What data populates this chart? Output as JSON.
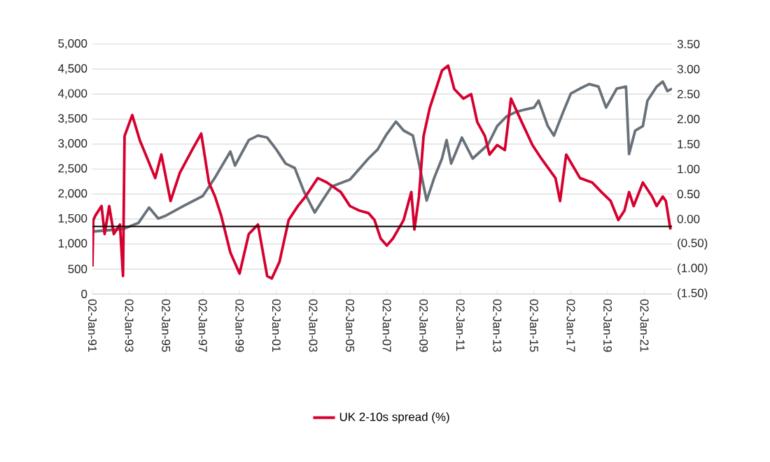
{
  "chart_data": {
    "type": "line",
    "xlim": [
      "1991-01-02",
      "2022-07"
    ],
    "xticks": [
      {
        "value": "1991-01-02",
        "label": "02-Jan-91"
      },
      {
        "value": "1993-01-02",
        "label": "02-Jan-93"
      },
      {
        "value": "1995-01-02",
        "label": "02-Jan-95"
      },
      {
        "value": "1997-01-02",
        "label": "02-Jan-97"
      },
      {
        "value": "1999-01-02",
        "label": "02-Jan-99"
      },
      {
        "value": "2001-01-02",
        "label": "02-Jan-01"
      },
      {
        "value": "2003-01-02",
        "label": "02-Jan-03"
      },
      {
        "value": "2005-01-02",
        "label": "02-Jan-05"
      },
      {
        "value": "2007-01-02",
        "label": "02-Jan-07"
      },
      {
        "value": "2009-01-02",
        "label": "02-Jan-09"
      },
      {
        "value": "2011-01-02",
        "label": "02-Jan-11"
      },
      {
        "value": "2013-01-02",
        "label": "02-Jan-13"
      },
      {
        "value": "2015-01-02",
        "label": "02-Jan-15"
      },
      {
        "value": "2017-01-02",
        "label": "02-Jan-17"
      },
      {
        "value": "2019-01-02",
        "label": "02-Jan-19"
      },
      {
        "value": "2021-01-02",
        "label": "02-Jan-21"
      }
    ],
    "ylim": [
      0,
      5000
    ],
    "yticks": [
      {
        "value": 0,
        "label": "0"
      },
      {
        "value": 500,
        "label": "500"
      },
      {
        "value": 1000,
        "label": "1,000"
      },
      {
        "value": 1500,
        "label": "1,500"
      },
      {
        "value": 2000,
        "label": "2,000"
      },
      {
        "value": 2500,
        "label": "2,500"
      },
      {
        "value": 3000,
        "label": "3,000"
      },
      {
        "value": 3500,
        "label": "3,500"
      },
      {
        "value": 4000,
        "label": "4,000"
      },
      {
        "value": 4500,
        "label": "4,500"
      },
      {
        "value": 5000,
        "label": "5,000"
      }
    ],
    "y2lim": [
      -1.5,
      3.5
    ],
    "y2ticks": [
      {
        "value": -1.5,
        "label": "(1.50)"
      },
      {
        "value": -1.0,
        "label": "(1.00)"
      },
      {
        "value": -0.5,
        "label": "(0.50)"
      },
      {
        "value": 0,
        "label": "0.00"
      },
      {
        "value": 0.5,
        "label": "0.50"
      },
      {
        "value": 1.0,
        "label": "1.00"
      },
      {
        "value": 1.5,
        "label": "1.50"
      },
      {
        "value": 2.0,
        "label": "2.00"
      },
      {
        "value": 2.5,
        "label": "2.50"
      },
      {
        "value": 3.0,
        "label": "3.00"
      },
      {
        "value": 3.5,
        "label": "3.50"
      }
    ],
    "grid": "y",
    "legend": "bottom",
    "ref_lines": [
      {
        "axis": "y2",
        "value": -0.15,
        "color": "#000000"
      }
    ],
    "series": [
      {
        "color": "#68717a",
        "x": [
          "1991-01-02",
          "1992-09",
          "1993-07",
          "1994-02",
          "1994-08",
          "1995-01",
          "1996-01",
          "1997-01",
          "1997-09",
          "1998-07",
          "1998-10",
          "1999-07",
          "2000-01",
          "2000-07",
          "2001-01",
          "2001-07",
          "2002-01",
          "2002-07",
          "2003-02",
          "2003-07",
          "2004-01",
          "2005-01",
          "2006-01",
          "2006-07",
          "2007-01",
          "2007-07",
          "2007-12",
          "2008-06",
          "2008-10",
          "2009-03",
          "2009-08",
          "2010-01",
          "2010-04",
          "2010-07",
          "2011-02",
          "2011-09",
          "2012-07",
          "2013-01",
          "2013-07",
          "2014-01",
          "2014-07",
          "2015-01",
          "2015-04",
          "2015-10",
          "2016-02",
          "2016-08",
          "2017-01",
          "2017-07",
          "2018-01",
          "2018-07",
          "2018-12",
          "2019-07",
          "2020-01",
          "2020-03",
          "2020-07",
          "2020-12",
          "2021-03",
          "2021-09",
          "2022-01",
          "2022-04",
          "2022-07"
        ],
        "values": [
          1250,
          1300,
          1420,
          1730,
          1510,
          1570,
          1770,
          1960,
          2330,
          2850,
          2570,
          3080,
          3170,
          3130,
          2890,
          2610,
          2520,
          2050,
          1630,
          1870,
          2150,
          2290,
          2710,
          2890,
          3200,
          3450,
          3270,
          3170,
          2610,
          1870,
          2330,
          2710,
          3080,
          2610,
          3130,
          2710,
          2990,
          3360,
          3550,
          3640,
          3690,
          3730,
          3870,
          3360,
          3170,
          3640,
          4010,
          4110,
          4200,
          4150,
          3730,
          4110,
          4150,
          2800,
          3270,
          3360,
          3870,
          4150,
          4250,
          4060,
          4110
        ]
      },
      {
        "name": "UK 2-10s spread (%)",
        "color": "#d6002f",
        "axis": "y2",
        "x": [
          "1991-01-02",
          "1991-01-20",
          "1991-03",
          "1991-07",
          "1991-09",
          "1991-12",
          "1992-03",
          "1992-07",
          "1992-09",
          "1992-10",
          "1993-03",
          "1993-08",
          "1994-01",
          "1994-06",
          "1994-10",
          "1995-04",
          "1995-10",
          "1996-06",
          "1996-12",
          "1997-05",
          "1997-09",
          "1998-01",
          "1998-07",
          "1999-01",
          "1999-07",
          "2000-01",
          "2000-07",
          "2000-10",
          "2001-03",
          "2001-09",
          "2002-03",
          "2002-08",
          "2003-04",
          "2003-10",
          "2004-07",
          "2005-01",
          "2005-07",
          "2006-01",
          "2006-05",
          "2006-09",
          "2007-01",
          "2007-05",
          "2007-12",
          "2008-05",
          "2008-07",
          "2008-10",
          "2009-01",
          "2009-05",
          "2009-10",
          "2010-01",
          "2010-05",
          "2010-09",
          "2011-03",
          "2011-08",
          "2011-12",
          "2012-05",
          "2012-08",
          "2013-01",
          "2013-06",
          "2013-10",
          "2014-05",
          "2014-12",
          "2015-06",
          "2016-03",
          "2016-06",
          "2016-10",
          "2017-07",
          "2018-03",
          "2018-09",
          "2019-03",
          "2019-08",
          "2019-12",
          "2020-03",
          "2020-06",
          "2020-12",
          "2021-06",
          "2021-09",
          "2022-01",
          "2022-03",
          "2022-06"
        ],
        "values": [
          -0.95,
          -0.02,
          0.07,
          0.26,
          -0.3,
          0.26,
          -0.3,
          -0.11,
          -1.14,
          1.66,
          2.08,
          1.57,
          1.2,
          0.82,
          1.29,
          0.36,
          0.92,
          1.38,
          1.71,
          0.73,
          0.45,
          0.07,
          -0.67,
          -1.09,
          -0.3,
          -0.11,
          -1.14,
          -1.19,
          -0.86,
          -0.02,
          0.26,
          0.45,
          0.82,
          0.73,
          0.54,
          0.26,
          0.17,
          0.12,
          -0.02,
          -0.39,
          -0.53,
          -0.39,
          -0.02,
          0.54,
          -0.21,
          0.45,
          1.66,
          2.22,
          2.69,
          2.97,
          3.07,
          2.6,
          2.41,
          2.5,
          1.94,
          1.66,
          1.29,
          1.48,
          1.38,
          2.41,
          1.94,
          1.48,
          1.2,
          0.82,
          0.36,
          1.29,
          0.82,
          0.73,
          0.54,
          0.36,
          -0.02,
          0.17,
          0.54,
          0.26,
          0.73,
          0.45,
          0.26,
          0.45,
          0.36,
          -0.21
        ]
      }
    ]
  }
}
